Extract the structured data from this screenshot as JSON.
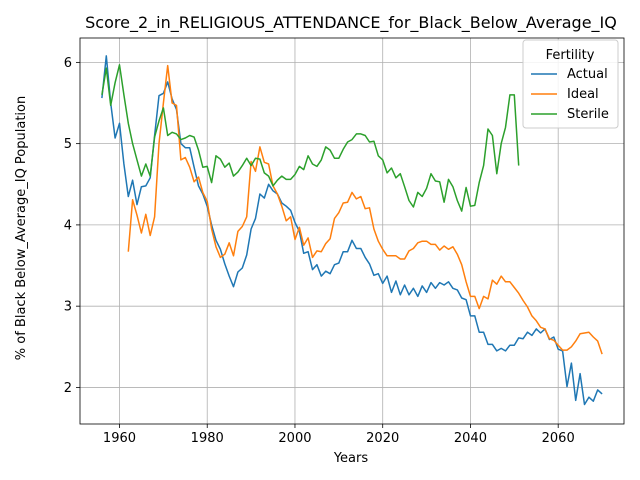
{
  "chart_data": {
    "type": "line",
    "title": "Score_2_in_RELIGIOUS_ATTENDANCE_for_Black_Below_Average_IQ",
    "xlabel": "Years",
    "ylabel": "% of Black Below_Average_IQ Population",
    "xlim": [
      1951,
      2075
    ],
    "ylim": [
      1.55,
      6.3
    ],
    "xticks": [
      1960,
      1980,
      2000,
      2020,
      2040,
      2060
    ],
    "yticks": [
      2,
      3,
      4,
      5,
      6
    ],
    "grid": true,
    "legend": {
      "title": "Fertility",
      "placement": "top-right"
    },
    "series": [
      {
        "name": "Actual",
        "color": "#1f77b4",
        "x": [
          1956,
          1957,
          1958,
          1959,
          1960,
          1961,
          1962,
          1963,
          1964,
          1965,
          1966,
          1967,
          1968,
          1969,
          1970,
          1971,
          1972,
          1973,
          1974,
          1975,
          1976,
          1977,
          1978,
          1979,
          1980,
          1981,
          1982,
          1983,
          1984,
          1985,
          1986,
          1987,
          1988,
          1989,
          1990,
          1991,
          1992,
          1993,
          1994,
          1995,
          1996,
          1997,
          1998,
          1999,
          2000,
          2001,
          2002,
          2003,
          2004,
          2005,
          2006,
          2007,
          2008,
          2009,
          2010,
          2011,
          2012,
          2013,
          2014,
          2015,
          2016,
          2017,
          2018,
          2019,
          2020,
          2021,
          2022,
          2023,
          2024,
          2025,
          2026,
          2027,
          2028,
          2029,
          2030,
          2031,
          2032,
          2033,
          2034,
          2035,
          2036,
          2037,
          2038,
          2039,
          2040,
          2041,
          2042,
          2043,
          2044,
          2045,
          2046,
          2047,
          2048,
          2049,
          2050,
          2051,
          2052,
          2053,
          2054,
          2055,
          2056,
          2057,
          2058,
          2059,
          2060,
          2061,
          2062,
          2063,
          2064,
          2065,
          2066,
          2067,
          2068,
          2069,
          2070
        ],
        "y": [
          5.56,
          6.08,
          5.5,
          5.07,
          5.25,
          4.75,
          4.35,
          4.55,
          4.25,
          4.47,
          4.48,
          4.58,
          5.1,
          5.59,
          5.62,
          5.76,
          5.55,
          5.42,
          5.0,
          4.95,
          4.95,
          4.71,
          4.48,
          4.38,
          4.23,
          4.0,
          3.81,
          3.7,
          3.52,
          3.37,
          3.24,
          3.42,
          3.47,
          3.63,
          3.95,
          4.08,
          4.38,
          4.33,
          4.5,
          4.42,
          4.38,
          4.27,
          4.23,
          4.18,
          4.03,
          3.92,
          3.65,
          3.67,
          3.45,
          3.51,
          3.37,
          3.43,
          3.4,
          3.51,
          3.53,
          3.67,
          3.67,
          3.81,
          3.71,
          3.71,
          3.6,
          3.52,
          3.38,
          3.4,
          3.28,
          3.37,
          3.17,
          3.31,
          3.14,
          3.26,
          3.14,
          3.22,
          3.12,
          3.25,
          3.17,
          3.29,
          3.22,
          3.29,
          3.26,
          3.3,
          3.22,
          3.2,
          3.1,
          3.08,
          2.88,
          2.88,
          2.68,
          2.68,
          2.53,
          2.53,
          2.45,
          2.48,
          2.45,
          2.52,
          2.52,
          2.61,
          2.6,
          2.68,
          2.64,
          2.72,
          2.67,
          2.72,
          2.59,
          2.62,
          2.47,
          2.45,
          2.01,
          2.3,
          1.84,
          2.17,
          1.79,
          1.88,
          1.83,
          1.97,
          1.92
        ]
      },
      {
        "name": "Ideal",
        "color": "#ff7f0e",
        "x": [
          1962,
          1963,
          1964,
          1965,
          1966,
          1967,
          1968,
          1969,
          1970,
          1971,
          1972,
          1973,
          1974,
          1975,
          1976,
          1977,
          1978,
          1979,
          1980,
          1981,
          1982,
          1983,
          1984,
          1985,
          1986,
          1987,
          1988,
          1989,
          1990,
          1991,
          1992,
          1993,
          1994,
          1995,
          1996,
          1997,
          1998,
          1999,
          2000,
          2001,
          2002,
          2003,
          2004,
          2005,
          2006,
          2007,
          2008,
          2009,
          2010,
          2011,
          2012,
          2013,
          2014,
          2015,
          2016,
          2017,
          2018,
          2019,
          2020,
          2021,
          2022,
          2023,
          2024,
          2025,
          2026,
          2027,
          2028,
          2029,
          2030,
          2031,
          2032,
          2033,
          2034,
          2035,
          2036,
          2037,
          2038,
          2039,
          2040,
          2041,
          2042,
          2043,
          2044,
          2045,
          2046,
          2047,
          2048,
          2049,
          2050,
          2051,
          2052,
          2053,
          2054,
          2055,
          2056,
          2057,
          2058,
          2059,
          2060,
          2061,
          2062,
          2063,
          2064,
          2065,
          2066,
          2067,
          2068,
          2069,
          2070
        ],
        "y": [
          3.67,
          4.31,
          4.12,
          3.9,
          4.13,
          3.87,
          4.1,
          5.0,
          5.5,
          5.96,
          5.5,
          5.47,
          4.8,
          4.83,
          4.71,
          4.53,
          4.59,
          4.4,
          4.29,
          3.95,
          3.73,
          3.6,
          3.64,
          3.78,
          3.62,
          3.92,
          3.98,
          4.1,
          4.78,
          4.66,
          4.96,
          4.77,
          4.75,
          4.48,
          4.38,
          4.23,
          4.05,
          4.1,
          3.82,
          3.97,
          3.75,
          3.84,
          3.6,
          3.68,
          3.67,
          3.77,
          3.83,
          4.08,
          4.15,
          4.27,
          4.28,
          4.4,
          4.32,
          4.35,
          4.2,
          4.21,
          3.95,
          3.8,
          3.7,
          3.62,
          3.62,
          3.62,
          3.58,
          3.58,
          3.68,
          3.71,
          3.78,
          3.8,
          3.8,
          3.76,
          3.76,
          3.69,
          3.74,
          3.7,
          3.73,
          3.64,
          3.51,
          3.3,
          3.12,
          3.12,
          2.97,
          3.12,
          3.09,
          3.32,
          3.27,
          3.37,
          3.3,
          3.3,
          3.23,
          3.16,
          3.07,
          2.99,
          2.88,
          2.82,
          2.74,
          2.72,
          2.6,
          2.58,
          2.52,
          2.46,
          2.46,
          2.5,
          2.57,
          2.66,
          2.67,
          2.68,
          2.62,
          2.57,
          2.41
        ]
      },
      {
        "name": "Sterile",
        "color": "#2ca02c",
        "x": [
          1956,
          1957,
          1958,
          1959,
          1960,
          1961,
          1962,
          1963,
          1964,
          1965,
          1966,
          1967,
          1968,
          1969,
          1970,
          1971,
          1972,
          1973,
          1974,
          1975,
          1976,
          1977,
          1978,
          1979,
          1980,
          1981,
          1982,
          1983,
          1984,
          1985,
          1986,
          1987,
          1988,
          1989,
          1990,
          1991,
          1992,
          1993,
          1994,
          1995,
          1996,
          1997,
          1998,
          1999,
          2000,
          2001,
          2002,
          2003,
          2004,
          2005,
          2006,
          2007,
          2008,
          2009,
          2010,
          2011,
          2012,
          2013,
          2014,
          2015,
          2016,
          2017,
          2018,
          2019,
          2020,
          2021,
          2022,
          2023,
          2024,
          2025,
          2026,
          2027,
          2028,
          2029,
          2030,
          2031,
          2032,
          2033,
          2034,
          2035,
          2036,
          2037,
          2038,
          2039,
          2040,
          2041,
          2042,
          2043,
          2044,
          2045,
          2046,
          2047,
          2048,
          2049,
          2050,
          2051
        ],
        "y": [
          5.6,
          5.93,
          5.47,
          5.75,
          5.97,
          5.6,
          5.25,
          5.0,
          4.8,
          4.6,
          4.75,
          4.6,
          5.08,
          5.28,
          5.44,
          5.1,
          5.14,
          5.12,
          5.05,
          5.07,
          5.1,
          5.08,
          4.92,
          4.71,
          4.72,
          4.52,
          4.85,
          4.81,
          4.71,
          4.76,
          4.6,
          4.65,
          4.73,
          4.82,
          4.73,
          4.82,
          4.81,
          4.64,
          4.6,
          4.48,
          4.55,
          4.6,
          4.56,
          4.56,
          4.62,
          4.72,
          4.68,
          4.85,
          4.75,
          4.72,
          4.8,
          4.96,
          4.92,
          4.82,
          4.82,
          4.93,
          5.02,
          5.05,
          5.12,
          5.12,
          5.1,
          5.02,
          5.03,
          4.85,
          4.8,
          4.64,
          4.7,
          4.58,
          4.63,
          4.47,
          4.3,
          4.22,
          4.4,
          4.35,
          4.45,
          4.63,
          4.54,
          4.53,
          4.28,
          4.56,
          4.47,
          4.3,
          4.17,
          4.46,
          4.23,
          4.24,
          4.52,
          4.73,
          5.18,
          5.1,
          4.63,
          5.0,
          5.2,
          5.6,
          5.6,
          4.73
        ]
      }
    ]
  }
}
